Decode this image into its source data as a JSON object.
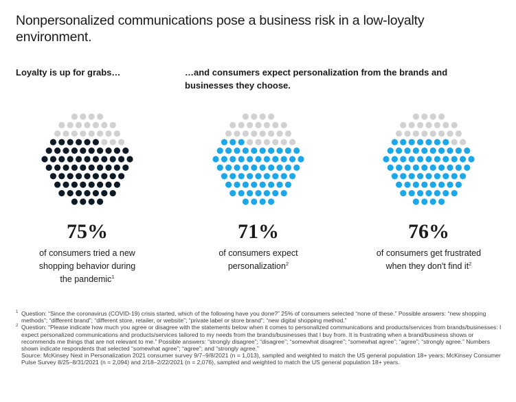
{
  "title": "Nonpersonalized communications pose a business risk in a low-loyalty environment.",
  "left_heading": "Loyalty is up for grabs…",
  "right_heading": "…and consumers expect personalization from the brands and businesses they choose.",
  "colors": {
    "inactive": "#d1d1d1",
    "navy": "#0e1a26",
    "cyan": "#1ba7e8"
  },
  "chart_data": {
    "type": "dot-circle",
    "panels": [
      {
        "value": 75,
        "value_label": "75%",
        "color": "#0e1a26",
        "label_parts": [
          "of consumers tried a new shopping behavior during the pandemic"
        ],
        "footnote_ref": "1",
        "desc_lines": [
          "of consumers tried a new",
          "shopping behavior during",
          "the pandemic"
        ]
      },
      {
        "value": 71,
        "value_label": "71%",
        "color": "#1ba7e8",
        "footnote_ref": "2",
        "desc_lines": [
          "of consumers expect",
          "personalization"
        ]
      },
      {
        "value": 76,
        "value_label": "76%",
        "color": "#1ba7e8",
        "footnote_ref": "2",
        "desc_lines": [
          "of consumers get frustrated",
          "when they don't find it"
        ]
      }
    ]
  },
  "footnotes": [
    {
      "num": "1",
      "text": "Question: “Since the coronavirus (COVID-19) crisis started, which of the following have you done?” 25% of consumers selected “none of these.” Possible answers: “new shopping methods”; “different brand”; “different store, retailer, or website”; “private label or store brand”; “new digital shopping method.”"
    },
    {
      "num": "2",
      "text": "Question: “Please indicate how much you agree or disagree with the statements below when it comes to personalized communications and products/services from brands/businesses: I expect personalized communications and products/services tailored to my needs from the brands/businesses that I buy from. It is frustrating when a brand/business shows or recommends me things that are not relevant to me.” Possible answers: “strongly disagree”; “disagree”; “somewhat disagree”; “somewhat agree”; “agree”; “strongly agree.” Numbers shown indicate respondents that selected “somewhat agree”; “agree”; and “strongly agree.”"
    }
  ],
  "source": "Source: McKinsey Next in Personalization 2021 consumer survey 9/7–9/8/2021 (n = 1,013), sampled and weighted to match the US general population 18+ years; McKinsey Consumer Pulse Survey 8/25–8/31/2021 (n = 2,094) and 2/18–2/22/2021 (n = 2,076), sampled and weighted to match the US general population 18+ years."
}
